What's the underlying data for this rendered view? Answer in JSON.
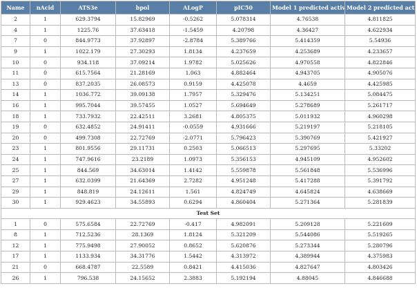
{
  "columns": [
    "Name",
    "nAcid",
    "ATS3e",
    "bpol",
    "ALogP",
    "pIC50",
    "Model 1 predicted activity",
    "Model 2 predicted activity"
  ],
  "training_rows": [
    [
      "2",
      "1",
      "629.3794",
      "15.82969",
      "-0.5262",
      "5.078314",
      "4.76538",
      "4.811825"
    ],
    [
      "4",
      "1",
      "1225.76",
      "37.63418",
      "-1.5459",
      "4.20798",
      "4.36427",
      "4.622934"
    ],
    [
      "7",
      "0",
      "844.9773",
      "37.92897",
      "-2.8784",
      "5.389766",
      "5.414359",
      "5.54936"
    ],
    [
      "9",
      "1",
      "1022.179",
      "27.30293",
      "1.8134",
      "4.237659",
      "4.253689",
      "4.233657"
    ],
    [
      "10",
      "0",
      "934.118",
      "37.09214",
      "1.9782",
      "5.025626",
      "4.970558",
      "4.822846"
    ],
    [
      "11",
      "0",
      "615.7564",
      "21.28169",
      "1.063",
      "4.882464",
      "4.943705",
      "4.905076"
    ],
    [
      "13",
      "0",
      "837.2035",
      "26.08573",
      "0.9159",
      "4.425078",
      "4.4659",
      "4.425985"
    ],
    [
      "14",
      "1",
      "1036.772",
      "39.09138",
      "1.7957",
      "5.329476",
      "5.134251",
      "5.084475"
    ],
    [
      "16",
      "1",
      "995.7044",
      "39.57455",
      "1.0527",
      "5.694649",
      "5.278689",
      "5.261717"
    ],
    [
      "18",
      "1",
      "733.7932",
      "22.42511",
      "3.2681",
      "4.805375",
      "5.011932",
      "4.960298"
    ],
    [
      "19",
      "0",
      "632.4852",
      "24.91411",
      "-0.0559",
      "4.931666",
      "5.219197",
      "5.218105"
    ],
    [
      "20",
      "0",
      "499.7308",
      "22.72769",
      "-2.0771",
      "5.796423",
      "5.390769",
      "5.421927"
    ],
    [
      "23",
      "1",
      "801.9556",
      "29.11731",
      "0.2503",
      "5.066513",
      "5.297695",
      "5.33202"
    ],
    [
      "24",
      "1",
      "747.9616",
      "23.2189",
      "1.0973",
      "5.356153",
      "4.945109",
      "4.952602"
    ],
    [
      "25",
      "1",
      "844.569",
      "34.63014",
      "1.4142",
      "5.559878",
      "5.561848",
      "5.536996"
    ],
    [
      "27",
      "1",
      "632.0399",
      "21.64369",
      "2.7282",
      "4.951248",
      "5.417288",
      "5.391792"
    ],
    [
      "29",
      "1",
      "848.819",
      "24.12611",
      "1.561",
      "4.824749",
      "4.645824",
      "4.638669"
    ],
    [
      "30",
      "1",
      "929.4623",
      "34.55893",
      "0.6294",
      "4.860404",
      "5.271364",
      "5.281839"
    ]
  ],
  "test_set_label": "Test Set",
  "test_rows": [
    [
      "1",
      "0",
      "575.6584",
      "22.72769",
      "-0.417",
      "4.982091",
      "5.209128",
      "5.221609"
    ],
    [
      "8",
      "1",
      "712.5236",
      "28.1369",
      "1.8124",
      "5.321209",
      "5.544086",
      "5.519265"
    ],
    [
      "12",
      "1",
      "775.9498",
      "27.90052",
      "0.8652",
      "5.620876",
      "5.273344",
      "5.280796"
    ],
    [
      "17",
      "1",
      "1133.934",
      "34.31776",
      "1.5442",
      "4.313972",
      "4.389944",
      "4.375983"
    ],
    [
      "21",
      "0",
      "668.4787",
      "22.5589",
      "0.8421",
      "4.415036",
      "4.827647",
      "4.803426"
    ],
    [
      "26",
      "1",
      "796.538",
      "24.15652",
      "2.3883",
      "5.192194",
      "4.88045",
      "4.846688"
    ]
  ],
  "colors": {
    "header_background": "#5a7fa6",
    "header_text": "#ffffff",
    "grid_line": "#b9b9b9"
  }
}
